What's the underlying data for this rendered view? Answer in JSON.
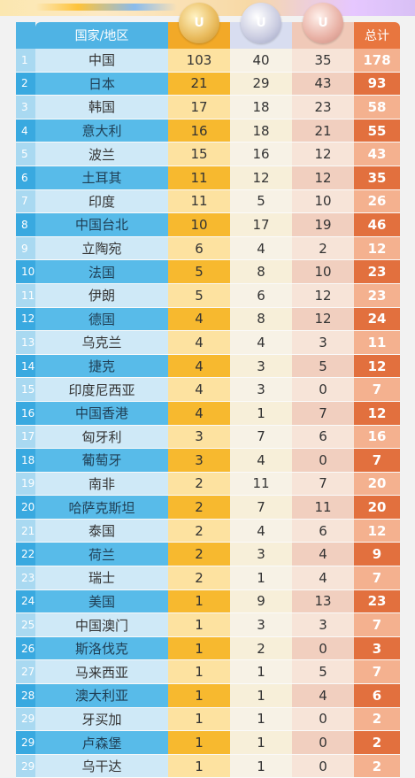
{
  "header": {
    "country_label": "国家/地区",
    "total_label": "总计",
    "medal_glyph": "U"
  },
  "rows": [
    {
      "rank": "1",
      "country": "中国",
      "gold": "103",
      "silver": "40",
      "bronze": "35",
      "total": "178"
    },
    {
      "rank": "2",
      "country": "日本",
      "gold": "21",
      "silver": "29",
      "bronze": "43",
      "total": "93"
    },
    {
      "rank": "3",
      "country": "韩国",
      "gold": "17",
      "silver": "18",
      "bronze": "23",
      "total": "58"
    },
    {
      "rank": "4",
      "country": "意大利",
      "gold": "16",
      "silver": "18",
      "bronze": "21",
      "total": "55"
    },
    {
      "rank": "5",
      "country": "波兰",
      "gold": "15",
      "silver": "16",
      "bronze": "12",
      "total": "43"
    },
    {
      "rank": "6",
      "country": "土耳其",
      "gold": "11",
      "silver": "12",
      "bronze": "12",
      "total": "35"
    },
    {
      "rank": "7",
      "country": "印度",
      "gold": "11",
      "silver": "5",
      "bronze": "10",
      "total": "26"
    },
    {
      "rank": "8",
      "country": "中国台北",
      "gold": "10",
      "silver": "17",
      "bronze": "19",
      "total": "46"
    },
    {
      "rank": "9",
      "country": "立陶宛",
      "gold": "6",
      "silver": "4",
      "bronze": "2",
      "total": "12"
    },
    {
      "rank": "10",
      "country": "法国",
      "gold": "5",
      "silver": "8",
      "bronze": "10",
      "total": "23"
    },
    {
      "rank": "11",
      "country": "伊朗",
      "gold": "5",
      "silver": "6",
      "bronze": "12",
      "total": "23"
    },
    {
      "rank": "12",
      "country": "德国",
      "gold": "4",
      "silver": "8",
      "bronze": "12",
      "total": "24"
    },
    {
      "rank": "13",
      "country": "乌克兰",
      "gold": "4",
      "silver": "4",
      "bronze": "3",
      "total": "11"
    },
    {
      "rank": "14",
      "country": "捷克",
      "gold": "4",
      "silver": "3",
      "bronze": "5",
      "total": "12"
    },
    {
      "rank": "15",
      "country": "印度尼西亚",
      "gold": "4",
      "silver": "3",
      "bronze": "0",
      "total": "7"
    },
    {
      "rank": "16",
      "country": "中国香港",
      "gold": "4",
      "silver": "1",
      "bronze": "7",
      "total": "12"
    },
    {
      "rank": "17",
      "country": "匈牙利",
      "gold": "3",
      "silver": "7",
      "bronze": "6",
      "total": "16"
    },
    {
      "rank": "18",
      "country": "葡萄牙",
      "gold": "3",
      "silver": "4",
      "bronze": "0",
      "total": "7"
    },
    {
      "rank": "19",
      "country": "南非",
      "gold": "2",
      "silver": "11",
      "bronze": "7",
      "total": "20"
    },
    {
      "rank": "20",
      "country": "哈萨克斯坦",
      "gold": "2",
      "silver": "7",
      "bronze": "11",
      "total": "20"
    },
    {
      "rank": "21",
      "country": "泰国",
      "gold": "2",
      "silver": "4",
      "bronze": "6",
      "total": "12"
    },
    {
      "rank": "22",
      "country": "荷兰",
      "gold": "2",
      "silver": "3",
      "bronze": "4",
      "total": "9"
    },
    {
      "rank": "23",
      "country": "瑞士",
      "gold": "2",
      "silver": "1",
      "bronze": "4",
      "total": "7"
    },
    {
      "rank": "24",
      "country": "美国",
      "gold": "1",
      "silver": "9",
      "bronze": "13",
      "total": "23"
    },
    {
      "rank": "25",
      "country": "中国澳门",
      "gold": "1",
      "silver": "3",
      "bronze": "3",
      "total": "7"
    },
    {
      "rank": "26",
      "country": "斯洛伐克",
      "gold": "1",
      "silver": "2",
      "bronze": "0",
      "total": "3"
    },
    {
      "rank": "27",
      "country": "马来西亚",
      "gold": "1",
      "silver": "1",
      "bronze": "5",
      "total": "7"
    },
    {
      "rank": "28",
      "country": "澳大利亚",
      "gold": "1",
      "silver": "1",
      "bronze": "4",
      "total": "6"
    },
    {
      "rank": "29",
      "country": "牙买加",
      "gold": "1",
      "silver": "1",
      "bronze": "0",
      "total": "2"
    },
    {
      "rank": "29",
      "country": "卢森堡",
      "gold": "1",
      "silver": "1",
      "bronze": "0",
      "total": "2"
    },
    {
      "rank": "29",
      "country": "乌干达",
      "gold": "1",
      "silver": "1",
      "bronze": "0",
      "total": "2"
    }
  ]
}
